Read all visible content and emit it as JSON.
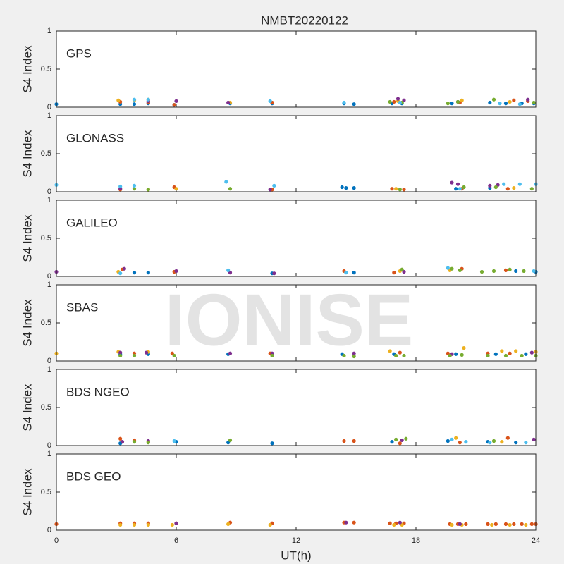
{
  "chart_data": [
    {
      "type": "scatter",
      "title": "NMBT20220122",
      "label": "GPS",
      "ylabel": "S4 Index",
      "xlim": [
        0,
        24
      ],
      "xticks": [
        0,
        6,
        12,
        18,
        24
      ],
      "ylim": [
        0,
        1
      ],
      "yticks": [
        0,
        0.5,
        1
      ],
      "series": [
        {
          "color": "#0072BD",
          "x": [
            0,
            3.2,
            3.9,
            4.6,
            5.9,
            8.7,
            10.8,
            14.4,
            14.9,
            16.8,
            17.3,
            19.8,
            21.7,
            22.5,
            23.3,
            23.9
          ],
          "values": [
            0.04,
            0.04,
            0.04,
            0.05,
            0.03,
            0.05,
            0.05,
            0.05,
            0.04,
            0.05,
            0.05,
            0.05,
            0.06,
            0.05,
            0.05,
            0.05
          ]
        },
        {
          "color": "#D95319",
          "x": [
            3.2,
            4.6,
            5.9,
            10.8,
            16.9,
            20.2,
            22.9,
            23.6
          ],
          "values": [
            0.07,
            0.06,
            0.03,
            0.06,
            0.07,
            0.06,
            0.09,
            0.08
          ]
        },
        {
          "color": "#EDB120",
          "x": [
            3.1,
            3.9,
            4.6,
            8.7,
            17.1,
            20.3,
            22.7
          ],
          "values": [
            0.09,
            0.09,
            0.1,
            0.06,
            0.08,
            0.09,
            0.07
          ]
        },
        {
          "color": "#7E2F8E",
          "x": [
            4.6,
            6.0,
            8.6,
            17.1,
            17.4,
            20.1,
            23.6
          ],
          "values": [
            0.08,
            0.08,
            0.06,
            0.11,
            0.09,
            0.07,
            0.1
          ]
        },
        {
          "color": "#77AC30",
          "x": [
            16.7,
            17.3,
            19.6,
            20.1,
            21.9,
            23.9
          ],
          "values": [
            0.07,
            0.06,
            0.05,
            0.07,
            0.1,
            0.06
          ]
        },
        {
          "color": "#4DBEEE",
          "x": [
            3.9,
            4.6,
            10.7,
            14.4,
            17.2,
            22.2,
            23.2
          ],
          "values": [
            0.1,
            0.1,
            0.08,
            0.06,
            0.06,
            0.05,
            0.04
          ]
        }
      ]
    },
    {
      "type": "scatter",
      "label": "GLONASS",
      "ylabel": "S4 Index",
      "xlim": [
        0,
        24
      ],
      "xticks": [
        0,
        6,
        12,
        18,
        24
      ],
      "ylim": [
        0,
        1
      ],
      "yticks": [
        0,
        0.5,
        1
      ],
      "series": [
        {
          "color": "#0072BD",
          "x": [
            14.3,
            14.5,
            14.9,
            20.0,
            21.7
          ],
          "values": [
            0.06,
            0.05,
            0.05,
            0.04,
            0.05
          ]
        },
        {
          "color": "#D95319",
          "x": [
            3.2,
            5.9,
            10.8,
            16.8,
            17.4,
            20.3,
            22.6
          ],
          "values": [
            0.03,
            0.06,
            0.03,
            0.04,
            0.03,
            0.04,
            0.04
          ]
        },
        {
          "color": "#EDB120",
          "x": [
            4.6,
            6.0,
            17.0,
            22.9
          ],
          "values": [
            0.03,
            0.04,
            0.04,
            0.05
          ]
        },
        {
          "color": "#7E2F8E",
          "x": [
            3.2,
            10.7,
            19.8,
            20.1,
            21.7,
            22.1
          ],
          "values": [
            0.04,
            0.03,
            0.12,
            0.1,
            0.08,
            0.09
          ]
        },
        {
          "color": "#77AC30",
          "x": [
            3.9,
            4.6,
            8.7,
            17.2,
            20.4,
            22.0,
            23.8
          ],
          "values": [
            0.04,
            0.03,
            0.04,
            0.03,
            0.06,
            0.06,
            0.04
          ]
        },
        {
          "color": "#4DBEEE",
          "x": [
            0,
            3.2,
            3.9,
            8.5,
            10.9,
            20.2,
            22.4,
            23.2,
            24
          ],
          "values": [
            0.09,
            0.07,
            0.08,
            0.13,
            0.08,
            0.04,
            0.1,
            0.1,
            0.1
          ]
        }
      ]
    },
    {
      "type": "scatter",
      "label": "GALILEO",
      "ylabel": "S4 Index",
      "xlim": [
        0,
        24
      ],
      "xticks": [
        0,
        6,
        12,
        18,
        24
      ],
      "ylim": [
        0,
        1
      ],
      "yticks": [
        0,
        0.5,
        1
      ],
      "series": [
        {
          "color": "#0072BD",
          "x": [
            3.9,
            4.6,
            10.8,
            14.9,
            23.0,
            24
          ],
          "values": [
            0.05,
            0.05,
            0.04,
            0.05,
            0.07,
            0.06
          ]
        },
        {
          "color": "#D95319",
          "x": [
            3.3,
            5.9,
            14.4,
            16.9,
            20.3,
            22.5
          ],
          "values": [
            0.09,
            0.06,
            0.07,
            0.05,
            0.1,
            0.08
          ]
        },
        {
          "color": "#EDB120",
          "x": [
            3.1,
            17.2,
            19.7
          ],
          "values": [
            0.06,
            0.07,
            0.08
          ]
        },
        {
          "color": "#7E2F8E",
          "x": [
            0,
            3.4,
            6.0,
            8.7,
            10.9,
            17.4
          ],
          "values": [
            0.06,
            0.1,
            0.07,
            0.05,
            0.04,
            0.06
          ]
        },
        {
          "color": "#77AC30",
          "x": [
            17.3,
            19.8,
            20.2,
            21.3,
            21.9,
            22.7,
            23.4
          ],
          "values": [
            0.09,
            0.1,
            0.08,
            0.06,
            0.07,
            0.09,
            0.07
          ]
        },
        {
          "color": "#4DBEEE",
          "x": [
            3.2,
            8.6,
            14.5,
            19.6,
            23.9
          ],
          "values": [
            0.04,
            0.08,
            0.05,
            0.11,
            0.07
          ]
        }
      ]
    },
    {
      "type": "scatter",
      "label": "SBAS",
      "ylabel": "S4 Index",
      "watermark": "IONISE",
      "xlim": [
        0,
        24
      ],
      "xticks": [
        0,
        6,
        12,
        18,
        24
      ],
      "ylim": [
        0,
        1
      ],
      "yticks": [
        0,
        0.5,
        1
      ],
      "series": [
        {
          "color": "#0072BD",
          "x": [
            3.2,
            4.6,
            8.6,
            14.3,
            16.9,
            20.0,
            22.0,
            23.5
          ],
          "values": [
            0.09,
            0.09,
            0.09,
            0.09,
            0.09,
            0.09,
            0.09,
            0.09
          ]
        },
        {
          "color": "#D95319",
          "x": [
            3.9,
            5.8,
            10.7,
            17.2,
            19.6,
            21.6,
            22.7
          ],
          "values": [
            0.1,
            0.1,
            0.1,
            0.11,
            0.1,
            0.1,
            0.1
          ]
        },
        {
          "color": "#EDB120",
          "x": [
            0,
            3.1,
            4.6,
            16.7,
            20.4,
            22.3,
            23.0,
            24
          ],
          "values": [
            0.1,
            0.12,
            0.12,
            0.13,
            0.17,
            0.13,
            0.13,
            0.12
          ]
        },
        {
          "color": "#7E2F8E",
          "x": [
            3.2,
            4.5,
            8.7,
            10.8,
            14.9,
            19.8,
            23.8
          ],
          "values": [
            0.11,
            0.11,
            0.1,
            0.1,
            0.1,
            0.09,
            0.11
          ]
        },
        {
          "color": "#77AC30",
          "x": [
            3.2,
            3.9,
            5.9,
            10.8,
            14.4,
            14.9,
            17.0,
            17.4,
            19.7,
            20.3,
            21.6,
            22.5,
            23.3,
            24
          ],
          "values": [
            0.07,
            0.07,
            0.07,
            0.07,
            0.07,
            0.06,
            0.07,
            0.07,
            0.07,
            0.08,
            0.07,
            0.07,
            0.07,
            0.07
          ]
        }
      ]
    },
    {
      "type": "scatter",
      "label": "BDS NGEO",
      "ylabel": "S4 Index",
      "xlim": [
        0,
        24
      ],
      "xticks": [
        0,
        6,
        12,
        18,
        24
      ],
      "ylim": [
        0,
        1
      ],
      "yticks": [
        0,
        0.5,
        1
      ],
      "series": [
        {
          "color": "#0072BD",
          "x": [
            3.2,
            6.0,
            8.6,
            10.8,
            16.8,
            19.6,
            21.6,
            23.0
          ],
          "values": [
            0.03,
            0.05,
            0.04,
            0.03,
            0.05,
            0.06,
            0.05,
            0.04
          ]
        },
        {
          "color": "#D95319",
          "x": [
            3.2,
            3.9,
            14.4,
            14.9,
            17.2,
            20.2,
            22.6
          ],
          "values": [
            0.09,
            0.07,
            0.06,
            0.06,
            0.03,
            0.04,
            0.1
          ]
        },
        {
          "color": "#EDB120",
          "x": [
            4.6,
            20.0,
            22.3
          ],
          "values": [
            0.05,
            0.1,
            0.05
          ]
        },
        {
          "color": "#7E2F8E",
          "x": [
            3.3,
            4.6,
            17.3,
            23.9
          ],
          "values": [
            0.05,
            0.06,
            0.07,
            0.08
          ]
        },
        {
          "color": "#77AC30",
          "x": [
            3.9,
            4.6,
            8.7,
            17.0,
            17.5,
            21.9
          ],
          "values": [
            0.05,
            0.04,
            0.07,
            0.08,
            0.09,
            0.06
          ]
        },
        {
          "color": "#4DBEEE",
          "x": [
            5.9,
            19.8,
            20.5,
            21.7,
            23.5
          ],
          "values": [
            0.06,
            0.08,
            0.05,
            0.04,
            0.04
          ]
        }
      ]
    },
    {
      "type": "scatter",
      "label": "BDS GEO",
      "ylabel": "S4 Index",
      "xlabel": "UT(h)",
      "xlim": [
        0,
        24
      ],
      "xticks": [
        0,
        6,
        12,
        18,
        24
      ],
      "ylim": [
        0,
        1
      ],
      "yticks": [
        0,
        0.5,
        1
      ],
      "series": [
        {
          "color": "#D95319",
          "x": [
            0,
            3.2,
            3.9,
            4.6,
            6.0,
            8.7,
            10.8,
            14.4,
            14.9,
            16.7,
            17.0,
            17.4,
            19.7,
            20.1,
            20.5,
            21.6,
            22.0,
            22.5,
            22.9,
            23.3,
            23.8,
            24
          ],
          "values": [
            0.08,
            0.09,
            0.09,
            0.09,
            0.09,
            0.1,
            0.09,
            0.1,
            0.1,
            0.09,
            0.09,
            0.09,
            0.08,
            0.08,
            0.08,
            0.08,
            0.08,
            0.08,
            0.08,
            0.08,
            0.08,
            0.08
          ]
        },
        {
          "color": "#EDB120",
          "x": [
            3.2,
            3.9,
            4.6,
            5.8,
            8.6,
            10.7,
            16.9,
            17.3,
            19.8,
            20.3,
            21.8,
            22.7,
            23.5
          ],
          "values": [
            0.07,
            0.07,
            0.07,
            0.07,
            0.08,
            0.07,
            0.07,
            0.07,
            0.07,
            0.07,
            0.07,
            0.07,
            0.07
          ]
        },
        {
          "color": "#7E2F8E",
          "x": [
            6.0,
            14.5,
            17.2,
            20.2
          ],
          "values": [
            0.09,
            0.1,
            0.1,
            0.08
          ]
        }
      ]
    }
  ]
}
